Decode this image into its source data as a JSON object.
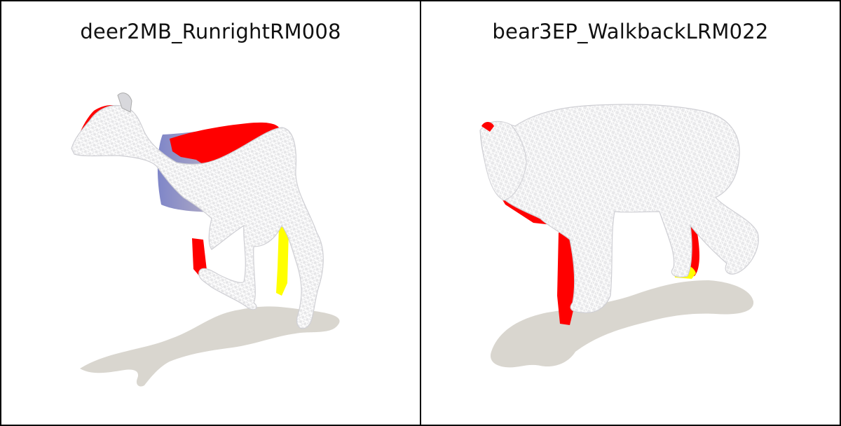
{
  "panels": [
    {
      "title": "deer2MB_RunrightRM008",
      "model": "deer"
    },
    {
      "title": "bear3EP_WalkbackLRM022",
      "model": "bear"
    }
  ],
  "colors": {
    "shadow": "#d9d6cf",
    "error_high": "#ff0000",
    "error_mid": "#ffff00",
    "error_low": "#7f86c8",
    "wireframe": "#ffffff",
    "border": "#000000"
  }
}
